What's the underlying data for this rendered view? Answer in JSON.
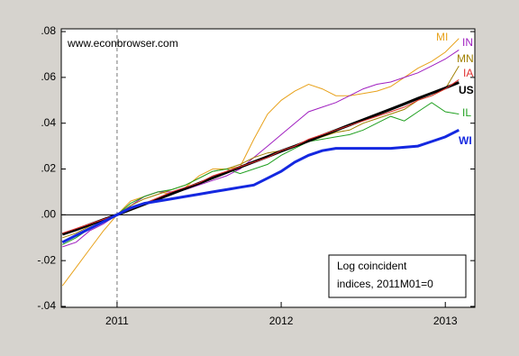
{
  "chart_data": {
    "type": "line",
    "source": "www.econbrowser.com",
    "annotation": [
      "Log coincident",
      "indices, 2011M01=0"
    ],
    "x": [
      2010.667,
      2010.75,
      2010.833,
      2010.917,
      2011.0,
      2011.083,
      2011.167,
      2011.25,
      2011.333,
      2011.417,
      2011.5,
      2011.583,
      2011.667,
      2011.75,
      2011.833,
      2011.917,
      2012.0,
      2012.083,
      2012.167,
      2012.25,
      2012.333,
      2012.417,
      2012.5,
      2012.583,
      2012.667,
      2012.75,
      2012.833,
      2012.917,
      2013.0,
      2013.083
    ],
    "xlim": [
      2010.66,
      2013.18
    ],
    "xticks": [
      2011,
      2012,
      2013
    ],
    "ylim": [
      -0.0404,
      0.0812
    ],
    "yticks": [
      {
        "value": 0.08,
        "label": ".08"
      },
      {
        "value": 0.06,
        "label": ".06"
      },
      {
        "value": 0.04,
        "label": ".04"
      },
      {
        "value": 0.02,
        "label": ".02"
      },
      {
        "value": 0,
        "label": ".00"
      },
      {
        "value": -0.02,
        "label": "-.02"
      },
      {
        "value": -0.04,
        "label": "-.04"
      }
    ],
    "reference_lines": {
      "x": 2011,
      "y": 0
    },
    "series": [
      {
        "name": "MI",
        "color": "#e8a21c",
        "width": 1,
        "values": [
          -0.031,
          -0.023,
          -0.015,
          -0.007,
          0,
          0.006,
          0.008,
          0.01,
          0.009,
          0.012,
          0.017,
          0.02,
          0.02,
          0.021,
          0.033,
          0.044,
          0.05,
          0.054,
          0.057,
          0.055,
          0.052,
          0.052,
          0.053,
          0.054,
          0.056,
          0.06,
          0.064,
          0.067,
          0.071,
          0.077
        ]
      },
      {
        "name": "IN",
        "color": "#a020c0",
        "width": 1,
        "values": [
          -0.014,
          -0.012,
          -0.007,
          -0.004,
          0,
          0.004,
          0.008,
          0.01,
          0.01,
          0.011,
          0.013,
          0.015,
          0.017,
          0.02,
          0.025,
          0.03,
          0.035,
          0.04,
          0.045,
          0.047,
          0.049,
          0.052,
          0.055,
          0.057,
          0.058,
          0.06,
          0.062,
          0.065,
          0.068,
          0.072
        ]
      },
      {
        "name": "MN",
        "color": "#a08000",
        "width": 1,
        "values": [
          -0.01,
          -0.008,
          -0.005,
          -0.002,
          0,
          0.004,
          0.007,
          0.009,
          0.011,
          0.013,
          0.016,
          0.019,
          0.02,
          0.022,
          0.025,
          0.027,
          0.028,
          0.03,
          0.032,
          0.034,
          0.036,
          0.037,
          0.04,
          0.042,
          0.044,
          0.046,
          0.05,
          0.052,
          0.055,
          0.065
        ]
      },
      {
        "name": "IL",
        "color": "#20a020",
        "width": 1,
        "values": [
          -0.013,
          -0.01,
          -0.006,
          -0.003,
          0,
          0.005,
          0.008,
          0.01,
          0.011,
          0.013,
          0.016,
          0.019,
          0.02,
          0.018,
          0.02,
          0.022,
          0.026,
          0.029,
          0.032,
          0.033,
          0.034,
          0.035,
          0.037,
          0.04,
          0.043,
          0.041,
          0.045,
          0.049,
          0.045,
          0.044
        ]
      },
      {
        "name": "US",
        "color": "#000000",
        "width": 3,
        "values": [
          -0.0085,
          -0.0065,
          -0.0043,
          -0.0021,
          0,
          0.0023,
          0.0046,
          0.0069,
          0.0092,
          0.0115,
          0.0138,
          0.0161,
          0.0185,
          0.0208,
          0.0231,
          0.0254,
          0.0278,
          0.03,
          0.0323,
          0.0346,
          0.0369,
          0.0392,
          0.0415,
          0.0438,
          0.0461,
          0.0484,
          0.0508,
          0.0531,
          0.0554,
          0.0578
        ]
      },
      {
        "name": "IA",
        "color": "#e03030",
        "width": 1,
        "values": [
          -0.008,
          -0.006,
          -0.004,
          -0.002,
          0,
          0.0025,
          0.005,
          0.0075,
          0.01,
          0.012,
          0.014,
          0.017,
          0.019,
          0.021,
          0.023,
          0.025,
          0.028,
          0.03,
          0.033,
          0.035,
          0.037,
          0.039,
          0.041,
          0.043,
          0.045,
          0.047,
          0.05,
          0.052,
          0.055,
          0.059
        ]
      },
      {
        "name": "WI",
        "color": "#1428e0",
        "width": 3,
        "values": [
          -0.012,
          -0.009,
          -0.006,
          -0.003,
          0,
          0.003,
          0.005,
          0.006,
          0.007,
          0.008,
          0.009,
          0.01,
          0.011,
          0.012,
          0.013,
          0.016,
          0.019,
          0.023,
          0.026,
          0.028,
          0.029,
          0.029,
          0.029,
          0.029,
          0.029,
          0.0295,
          0.03,
          0.032,
          0.034,
          0.037
        ]
      }
    ]
  }
}
